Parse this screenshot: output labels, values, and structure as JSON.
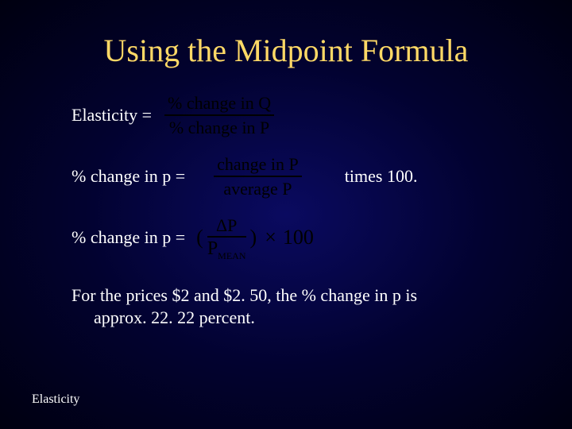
{
  "slide": {
    "background_colors": {
      "center": "#0a0a60",
      "mid": "#020230",
      "edge": "#000010"
    },
    "title": {
      "text": "Using the Midpoint Formula",
      "color": "#ffd966",
      "font_size_pt": 40
    },
    "rows": {
      "elasticity": {
        "label": "Elasticity =",
        "fraction": {
          "numerator": "% change in Q",
          "denominator": "% change in P",
          "color": "#000000"
        }
      },
      "pct_change_p_words": {
        "label": "% change in p =",
        "fraction": {
          "numerator": "change in P",
          "denominator": "average P",
          "color": "#000000"
        },
        "suffix": "times 100."
      },
      "pct_change_p_symbols": {
        "label": "% change in p =",
        "formula": {
          "paren_frac_num": "ΔP",
          "paren_frac_den_main": "P",
          "paren_frac_den_sub": "MEAN",
          "operator": "×",
          "constant": "100",
          "color": "#000000"
        }
      }
    },
    "conclusion": {
      "line1": "For the prices $2 and $2. 50, the % change in p is",
      "line2": "approx. 22. 22 percent."
    },
    "footer": "Elasticity",
    "text_color": "#ffffff",
    "body_font_size_pt": 22
  }
}
